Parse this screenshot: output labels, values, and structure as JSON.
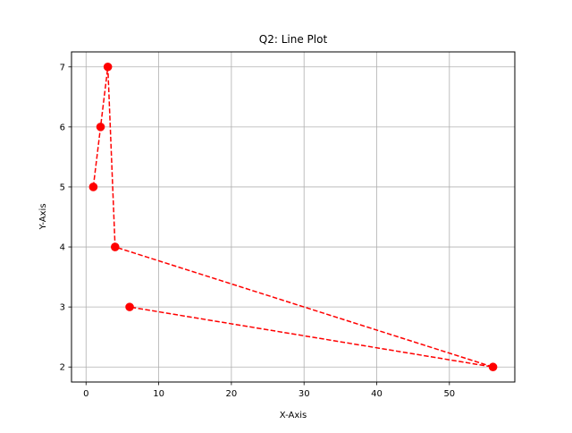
{
  "chart_data": {
    "type": "line",
    "title": "Q2: Line Plot",
    "xlabel": "X-Axis",
    "ylabel": "Y-Axis",
    "xlim": [
      -2,
      59
    ],
    "ylim": [
      1.75,
      7.25
    ],
    "xticks": [
      0,
      10,
      20,
      30,
      40,
      50
    ],
    "yticks": [
      2,
      3,
      4,
      5,
      6,
      7
    ],
    "grid": true,
    "series": [
      {
        "x": [
          1,
          2,
          3,
          4,
          56,
          6
        ],
        "y": [
          5,
          6,
          7,
          4,
          2,
          3
        ],
        "color": "#ff0000",
        "linestyle": "dashed",
        "marker": "circle"
      }
    ]
  }
}
